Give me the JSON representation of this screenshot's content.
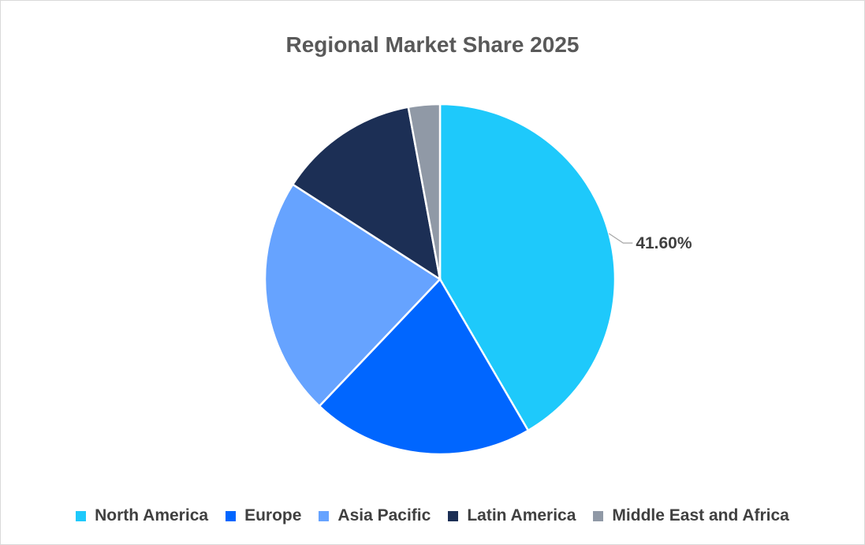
{
  "chart_data": {
    "type": "pie",
    "title": "Regional Market Share 2025",
    "categories": [
      "North America",
      "Europe",
      "Asia Pacific",
      "Latin America",
      "Middle East and Africa"
    ],
    "values": [
      41.6,
      20.5,
      22.0,
      13.0,
      2.9
    ],
    "colors": [
      "#1ec9fb",
      "#0066ff",
      "#66a3ff",
      "#1c2f55",
      "#9099a6"
    ],
    "data_labels": [
      "41.60%",
      "",
      "",
      "",
      ""
    ],
    "legend_position": "bottom"
  }
}
